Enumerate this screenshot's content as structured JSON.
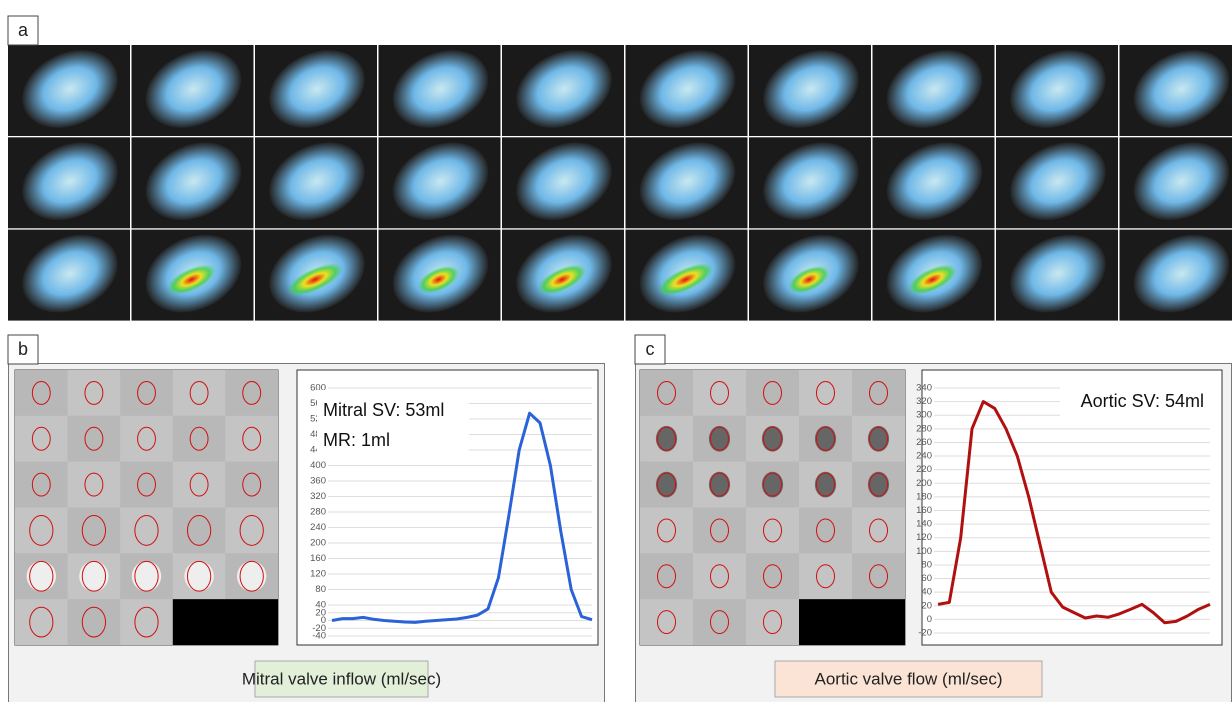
{
  "panel_labels": [
    "a",
    "b",
    "c"
  ],
  "chart_data": [
    {
      "type": "line",
      "annotations": [
        "Mitral SV: 53ml",
        "MR: 1ml"
      ],
      "caption": "Mitral valve inflow (ml/sec)",
      "color": "#2a62d8",
      "grid": true,
      "ylim": [
        -40,
        600
      ],
      "yticks": [
        -40,
        -20,
        0,
        20,
        40,
        80,
        120,
        160,
        200,
        240,
        280,
        320,
        360,
        400,
        440,
        480,
        520,
        560,
        600
      ],
      "values": [
        0,
        5,
        5,
        8,
        3,
        0,
        -2,
        -4,
        -5,
        -2,
        0,
        2,
        4,
        8,
        14,
        30,
        110,
        270,
        440,
        535,
        510,
        400,
        230,
        80,
        10,
        2
      ]
    },
    {
      "type": "line",
      "annotations": [
        "Aortic SV: 54ml"
      ],
      "caption": "Aortic valve flow (ml/sec)",
      "color": "#b01010",
      "grid": true,
      "ylim": [
        -20,
        340
      ],
      "yticks": [
        -20,
        0,
        20,
        40,
        60,
        80,
        100,
        120,
        140,
        160,
        180,
        200,
        220,
        240,
        260,
        280,
        300,
        320,
        340
      ],
      "values": [
        22,
        25,
        120,
        280,
        320,
        310,
        280,
        240,
        180,
        110,
        40,
        18,
        10,
        2,
        5,
        3,
        8,
        15,
        22,
        10,
        -5,
        -3,
        5,
        15,
        22
      ]
    }
  ]
}
